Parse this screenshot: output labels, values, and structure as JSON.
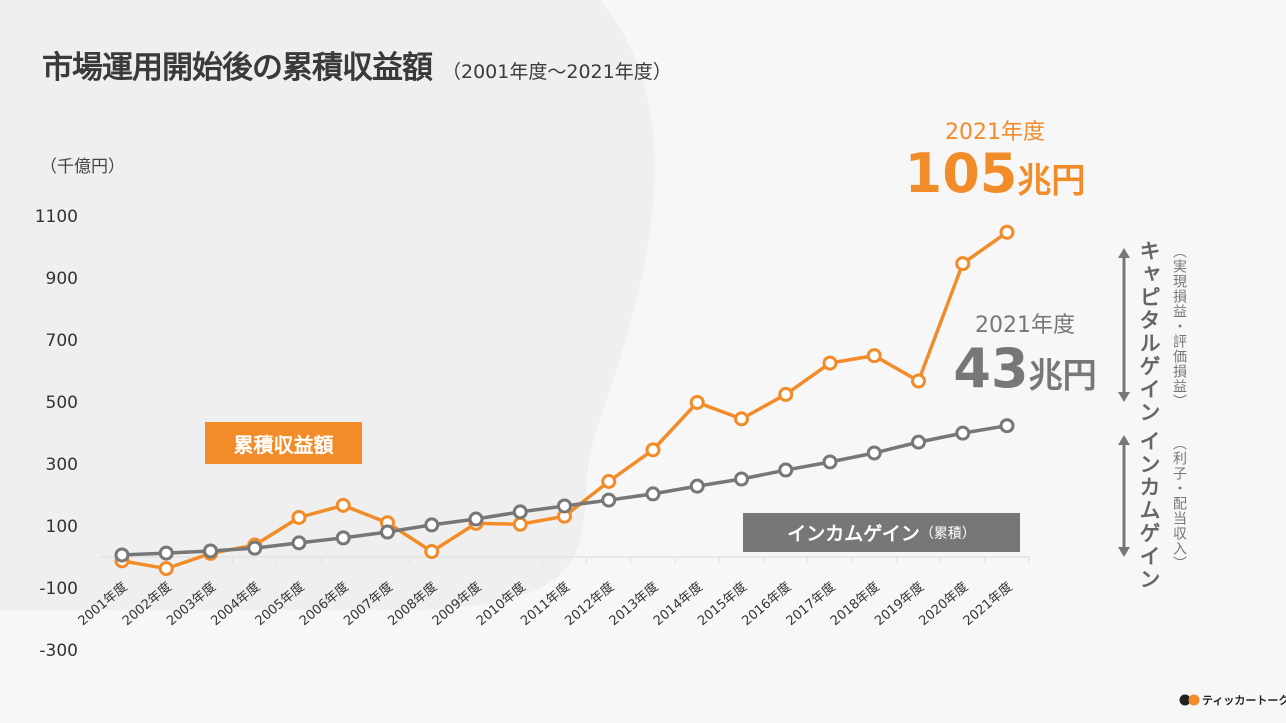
{
  "title": "市場運用開始後の累積収益額",
  "subtitle": "（2001年度〜2021年度）",
  "colors": {
    "cumulative": "#f28c28",
    "income": "#777777",
    "background": "#f3f3f3"
  },
  "chart_data": {
    "type": "line",
    "title": "市場運用開始後の累積収益額",
    "ylabel": "（千億円）",
    "ylim": [
      -300,
      1100
    ],
    "yticks": [
      "1100",
      "900",
      "700",
      "500",
      "300",
      "100",
      "-100",
      "-300"
    ],
    "grid": false,
    "categories": [
      "2001年度",
      "2002年度",
      "2003年度",
      "2004年度",
      "2005年度",
      "2006年度",
      "2007年度",
      "2008年度",
      "2009年度",
      "2010年度",
      "2011年度",
      "2012年度",
      "2013年度",
      "2014年度",
      "2015年度",
      "2016年度",
      "2017年度",
      "2018年度",
      "2019年度",
      "2020年度",
      "2021年度"
    ],
    "series": [
      {
        "name": "累積収益額",
        "color": "#f28c28",
        "values": [
          -6,
          -31,
          18,
          45,
          134,
          173,
          117,
          24,
          115,
          112,
          138,
          250,
          352,
          505,
          452,
          531,
          632,
          656,
          574,
          953,
          1054
        ]
      },
      {
        "name": "インカムゲイン（累積）",
        "color": "#777777",
        "values": [
          13,
          19,
          26,
          35,
          52,
          68,
          87,
          110,
          129,
          152,
          171,
          190,
          210,
          235,
          258,
          287,
          313,
          342,
          377,
          406,
          430
        ]
      }
    ],
    "annotations": [
      {
        "year": "2021年度",
        "value": "105",
        "unit": "兆円",
        "color": "#f28c28"
      },
      {
        "year": "2021年度",
        "value": "43",
        "unit": "兆円",
        "color": "#777777"
      }
    ]
  },
  "legend": {
    "cumulative_label": "累積収益額",
    "income_label": "インカムゲイン",
    "income_suffix": "（累積）"
  },
  "side": {
    "capital_gain": "キャピタルゲイン",
    "capital_gain_sub": "（実現損益・評価損益）",
    "income_gain": "インカムゲイン",
    "income_gain_sub": "（利子・配当収入）"
  },
  "brand": "ティッカートーク"
}
